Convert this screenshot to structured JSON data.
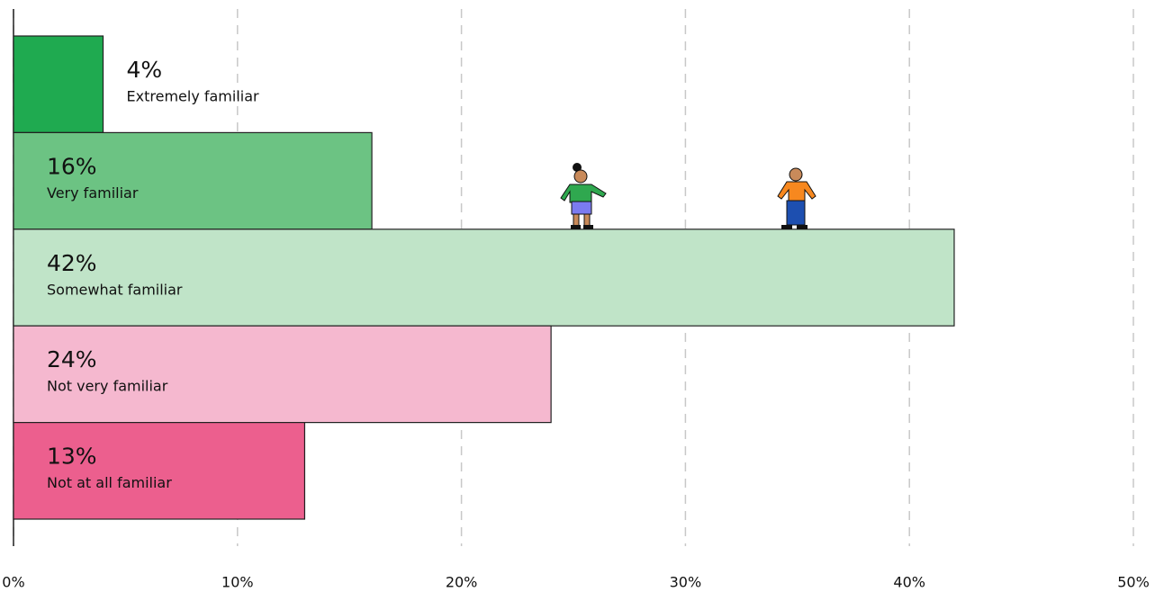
{
  "chart_data": {
    "type": "hbar",
    "categories": [
      "Extremely familiar",
      "Very familiar",
      "Somewhat familiar",
      "Not very familiar",
      "Not at all familiar"
    ],
    "values": [
      4,
      16,
      42,
      24,
      13
    ],
    "value_labels": [
      "4%",
      "16%",
      "42%",
      "24%",
      "13%"
    ],
    "colors": [
      "#1faa50",
      "#6cc383",
      "#c0e4c8",
      "#f5b8cf",
      "#ec5f8e"
    ],
    "xlim": [
      0,
      50
    ],
    "xticks": [
      {
        "value": 0,
        "label": "0%"
      },
      {
        "value": 10,
        "label": "10%"
      },
      {
        "value": 20,
        "label": "20%"
      },
      {
        "value": 30,
        "label": "30%"
      },
      {
        "value": 40,
        "label": "40%"
      },
      {
        "value": 50,
        "label": "50%"
      }
    ],
    "grid": true
  }
}
